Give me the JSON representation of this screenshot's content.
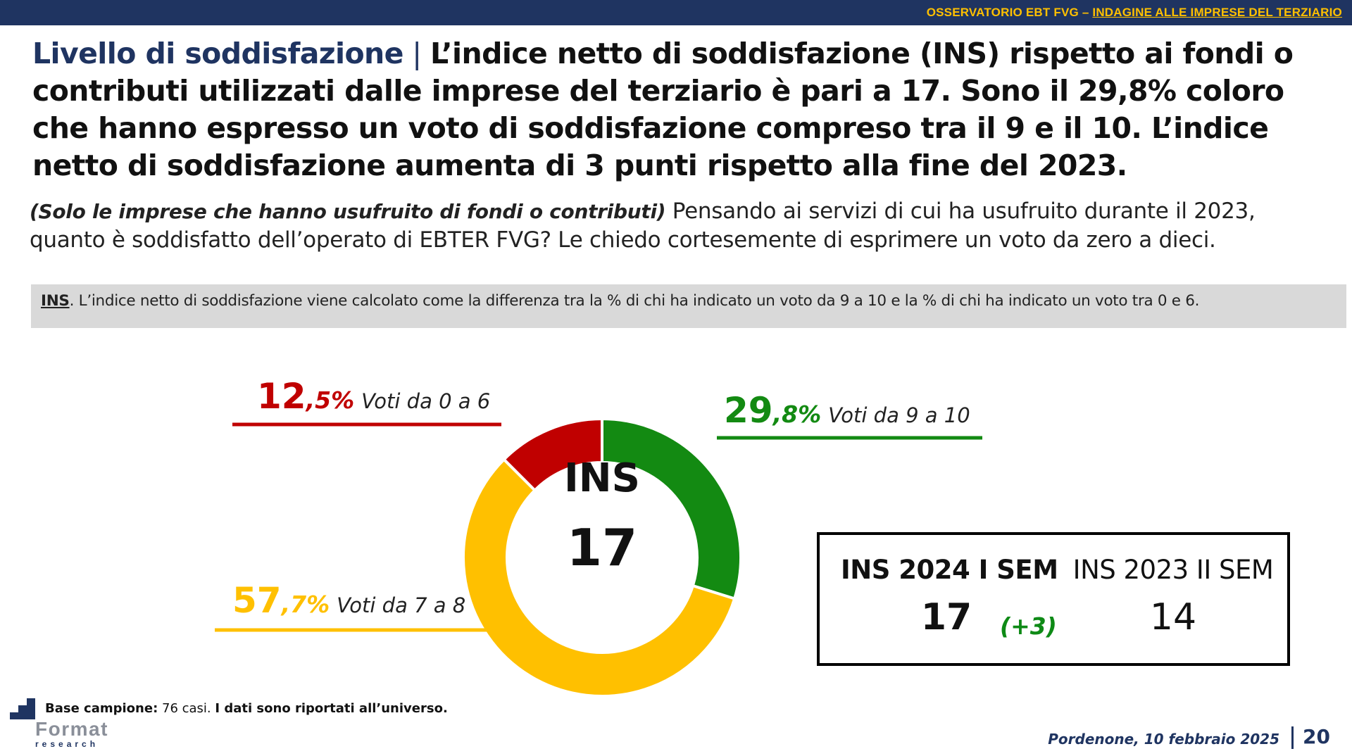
{
  "header": {
    "prefix": "OSSERVATORIO EBT FVG – ",
    "link": "INDAGINE ALLE IMPRESE DEL TERZIARIO"
  },
  "headline": {
    "lead": "Livello di soddisfazione",
    "separator": " | ",
    "text": "L’indice netto di soddisfazione (INS) rispetto ai fondi o contributi utilizzati dalle imprese del terziario è pari a 17. Sono il 29,8% coloro che hanno espresso un voto di soddisfazione compreso tra il 9 e il 10. L’indice netto di soddisfazione aumenta di 3 punti rispetto alla fine del 2023."
  },
  "question": {
    "qualifier": "(Solo le imprese che hanno usufruito di fondi o contributi)",
    "text": " Pensando ai servizi di cui ha usufruito durante il 2023, quanto è soddisfatto dell’operato di EBTER FVG? Le chiedo cortesemente di esprimere un voto da zero a dieci."
  },
  "note": {
    "term": "INS",
    "text": ". L’indice netto di soddisfazione viene calcolato come la differenza tra la % di chi ha indicato un voto da 9 a 10 e la % di chi ha indicato un voto tra 0 e 6."
  },
  "chart_data": {
    "type": "pie",
    "donut": true,
    "center_label": "INS",
    "center_value": "17",
    "slices": [
      {
        "label": "Voti da 9 a 10",
        "value": 29.8,
        "int_part": "29",
        "dec_part": ",8%",
        "color": "#138a12"
      },
      {
        "label": "Voti da 7 a 8",
        "value": 57.7,
        "int_part": "57",
        "dec_part": ",7%",
        "color": "#ffc000"
      },
      {
        "label": "Voti da 0 a 6",
        "value": 12.5,
        "int_part": "12",
        "dec_part": ",5%",
        "color": "#c00000"
      }
    ]
  },
  "kpi": {
    "current_label": "INS 2024 I SEM",
    "current_value": "17",
    "delta": "(+3)",
    "previous_label": "INS 2023 II SEM",
    "previous_value": "14"
  },
  "footer": {
    "base_label": "Base campione:",
    "base_cases": " 76 casi. ",
    "base_note": "I dati sono riportati all’universo.",
    "logo_word": "Format",
    "logo_sub": "research",
    "date": "Pordenone, 10 febbraio 2025",
    "page": "20"
  }
}
